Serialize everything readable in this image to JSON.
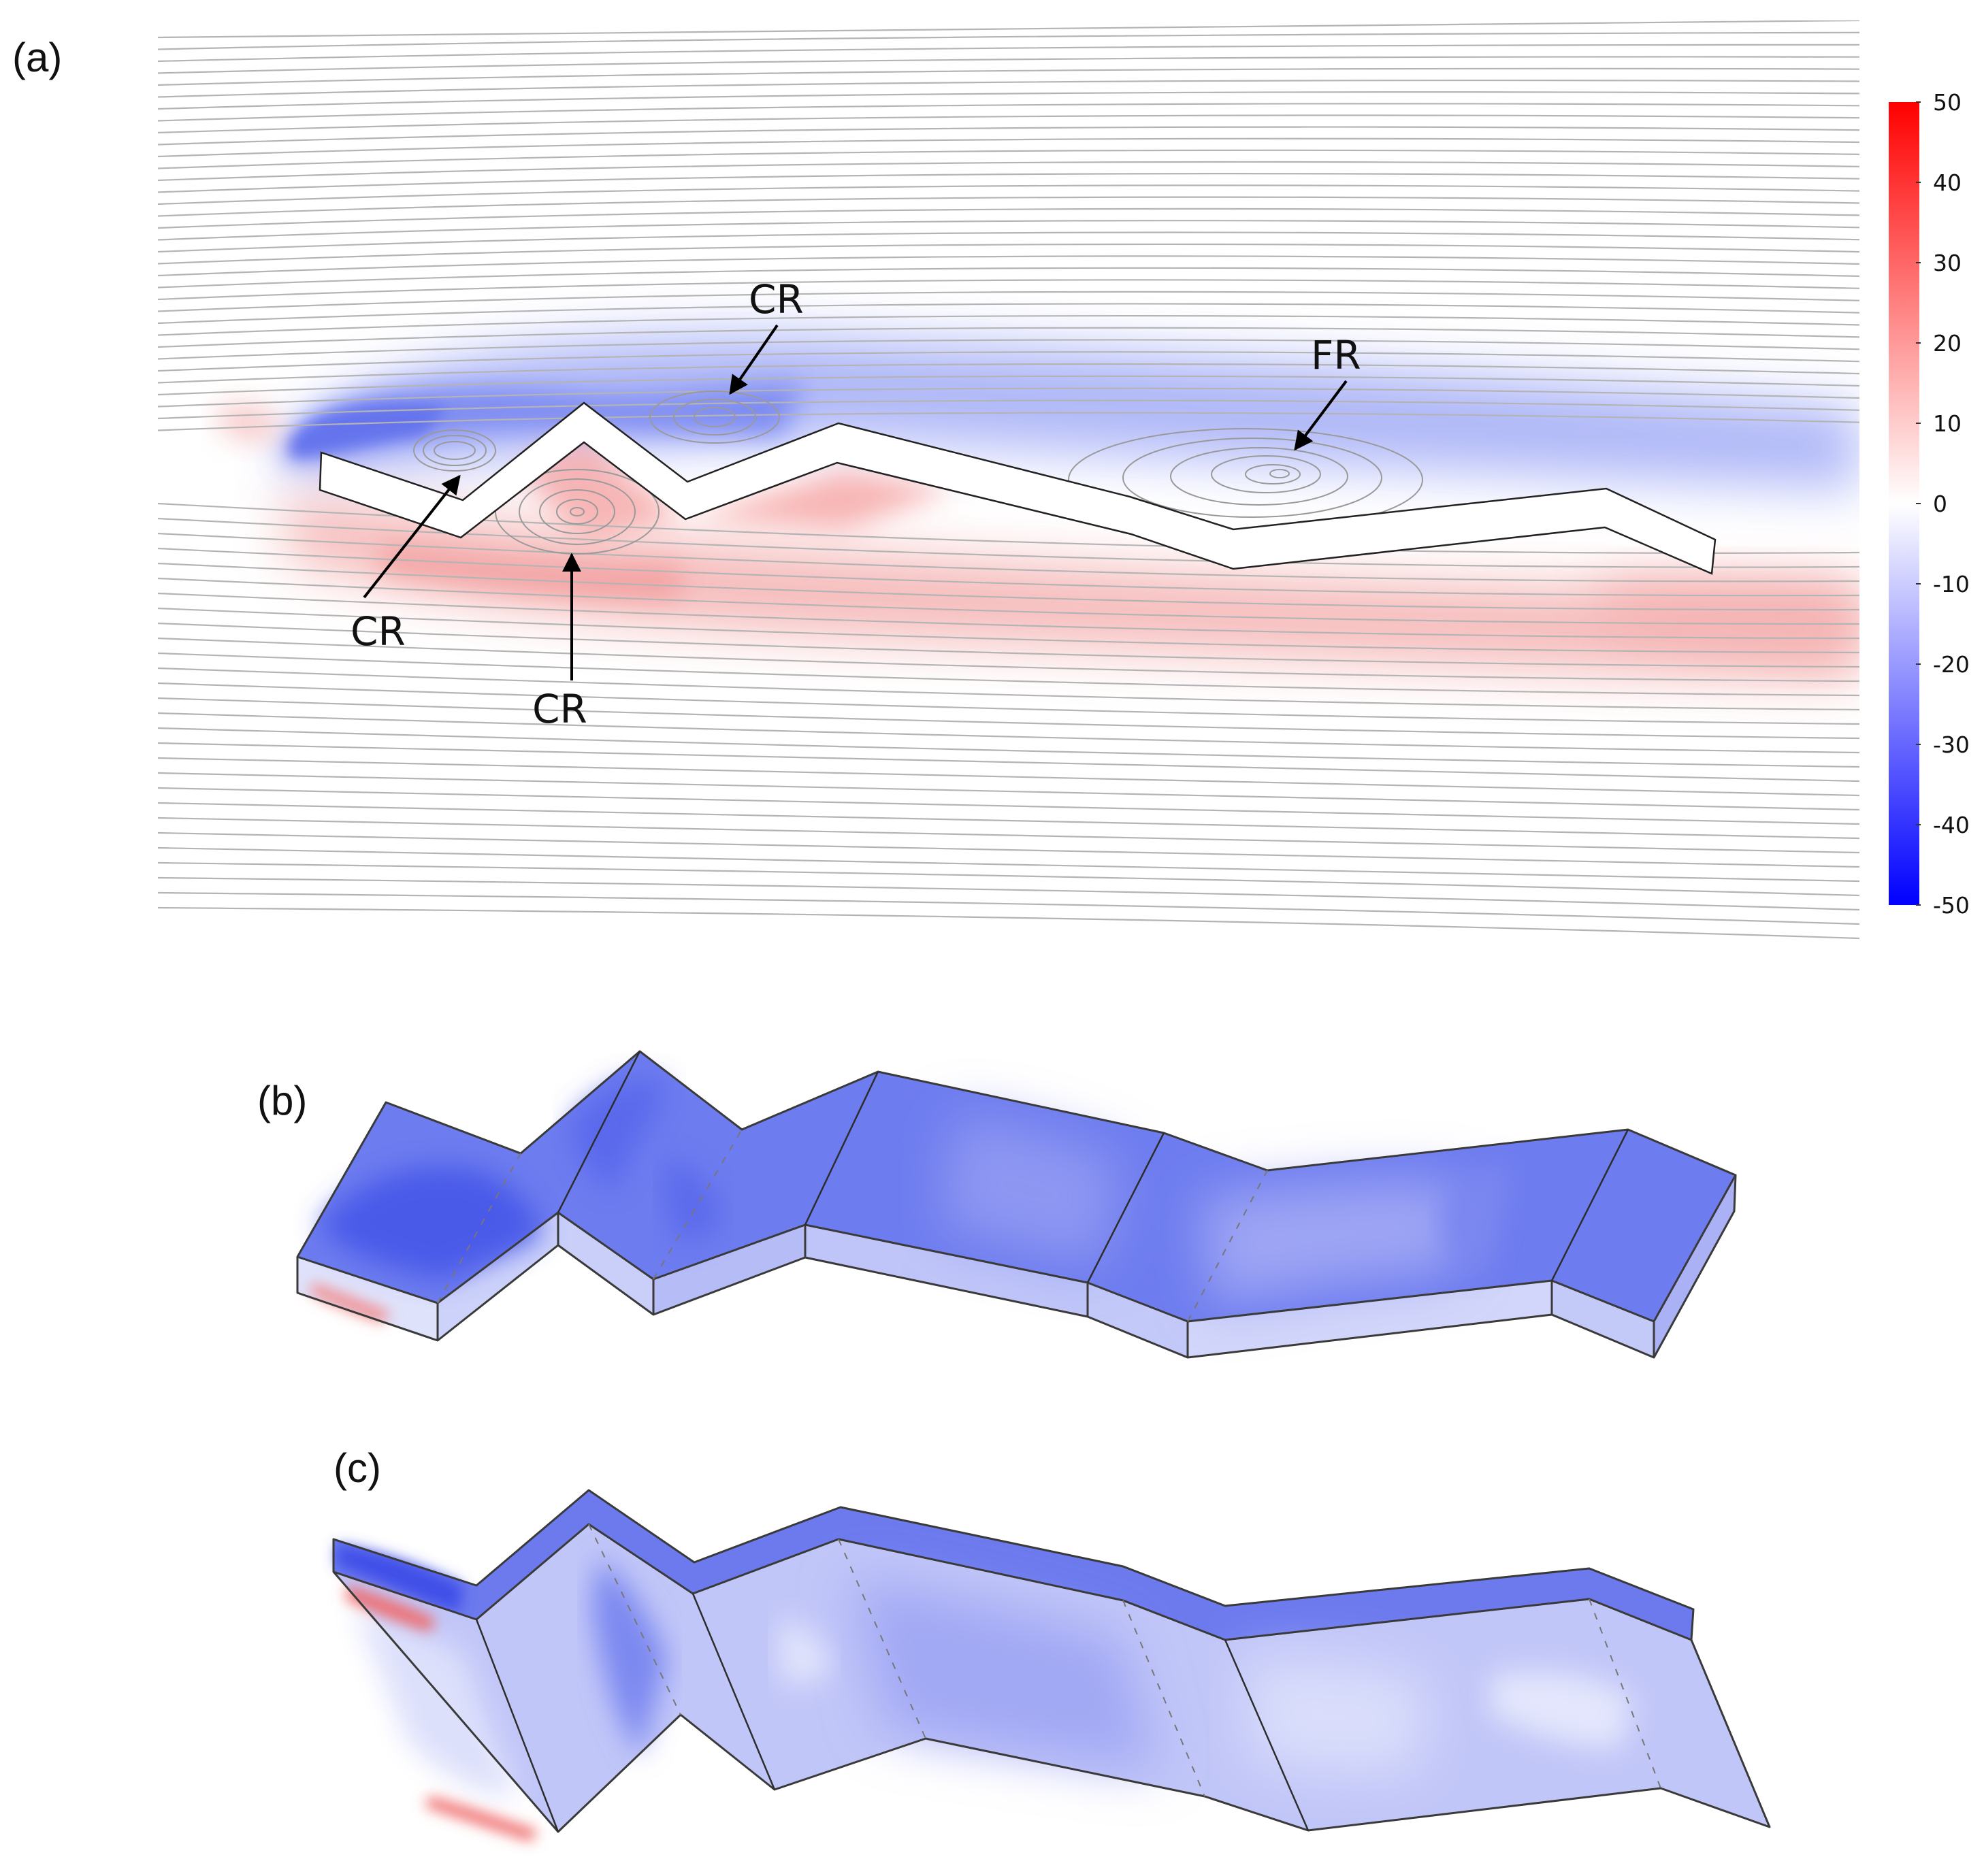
{
  "panels": {
    "a": {
      "label": "(a)"
    },
    "b": {
      "label": "(b)"
    },
    "c": {
      "label": "(c)"
    }
  },
  "annotations": [
    {
      "text": "CR"
    },
    {
      "text": "FR"
    },
    {
      "text": "CR"
    },
    {
      "text": "CR"
    }
  ],
  "colorbar": {
    "ticks": [
      "50",
      "40",
      "30",
      "20",
      "10",
      "0",
      "-10",
      "-20",
      "-30",
      "-40",
      "-50"
    ],
    "min": -50,
    "max": 50,
    "colors": {
      "min": "#0000ff",
      "mid": "#ffffff",
      "max": "#ff0000"
    }
  },
  "colors": {
    "streamline": "#b4b4b4",
    "negative_region": "#6a78ee",
    "positive_region": "#f08a8a",
    "surface_base": "#9da4f2"
  }
}
